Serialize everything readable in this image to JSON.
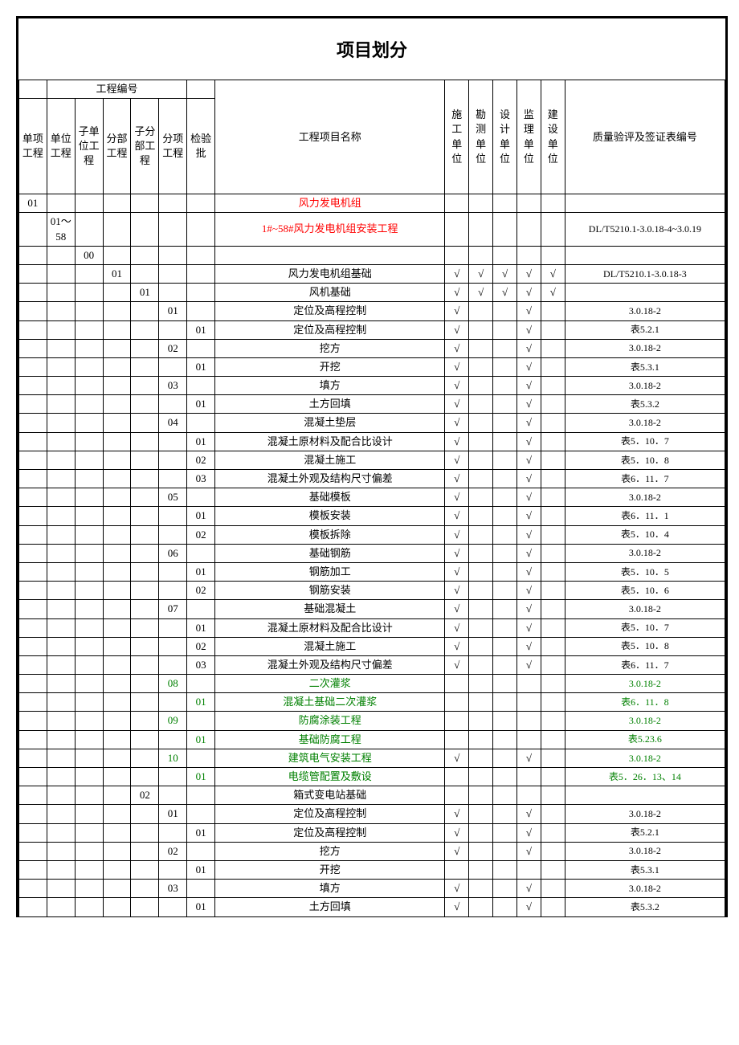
{
  "title": "项目划分",
  "proj_num_header": "工程编号",
  "headers": {
    "c1": "单项工程",
    "c2": "单位工程",
    "c3": "子单位工程",
    "c4": "分部工程",
    "c5": "子分部工程",
    "c6": "分项工程",
    "c7": "检验批",
    "name": "工程项目名称",
    "u1": "施工单位",
    "u2": "勘测单位",
    "u3": "设计单位",
    "u4": "监理单位",
    "u5": "建设单位",
    "qual": "质量验评及签证表编号"
  },
  "check": "√",
  "rows": [
    {
      "c1": "01",
      "name": "风力发电机组",
      "class": "red"
    },
    {
      "c2": "01～58",
      "name": "1#~58#风力发电机组安装工程",
      "class": "red",
      "qual": "DL/T5210.1-3.0.18-4~3.0.19"
    },
    {
      "c3": "00"
    },
    {
      "c4": "01",
      "name": "风力发电机组基础",
      "u1": "√",
      "u2": "√",
      "u3": "√",
      "u4": "√",
      "u5": "√",
      "qual": "DL/T5210.1-3.0.18-3"
    },
    {
      "c5": "01",
      "name": "风机基础",
      "u1": "√",
      "u2": "√",
      "u3": "√",
      "u4": "√",
      "u5": "√"
    },
    {
      "c6": "01",
      "name": "定位及高程控制",
      "u1": "√",
      "u4": "√",
      "qual": "3.0.18-2"
    },
    {
      "c7": "01",
      "name": "定位及高程控制",
      "u1": "√",
      "u4": "√",
      "qual": "表5.2.1"
    },
    {
      "c6": "02",
      "name": "挖方",
      "u1": "√",
      "u4": "√",
      "qual": "3.0.18-2"
    },
    {
      "c7": "01",
      "name": "开挖",
      "u1": "√",
      "u4": "√",
      "qual": "表5.3.1"
    },
    {
      "c6": "03",
      "name": "填方",
      "u1": "√",
      "u4": "√",
      "qual": "3.0.18-2"
    },
    {
      "c7": "01",
      "name": "土方回填",
      "u1": "√",
      "u4": "√",
      "qual": "表5.3.2"
    },
    {
      "c6": "04",
      "name": "混凝土垫层",
      "u1": "√",
      "u4": "√",
      "qual": "3.0.18-2"
    },
    {
      "c7": "01",
      "name": "混凝土原材料及配合比设计",
      "u1": "√",
      "u4": "√",
      "qual": "表5．10．7"
    },
    {
      "c7": "02",
      "name": "混凝土施工",
      "u1": "√",
      "u4": "√",
      "qual": "表5．10．8"
    },
    {
      "c7": "03",
      "name": "混凝土外观及结构尺寸偏差",
      "u1": "√",
      "u4": "√",
      "qual": "表6．11．7"
    },
    {
      "c6": "05",
      "name": "基础模板",
      "u1": "√",
      "u4": "√",
      "qual": "3.0.18-2"
    },
    {
      "c7": "01",
      "name": "模板安装",
      "u1": "√",
      "u4": "√",
      "qual": "表6．11．1"
    },
    {
      "c7": "02",
      "name": "模板拆除",
      "u1": "√",
      "u4": "√",
      "qual": "表5．10．4"
    },
    {
      "c6": "06",
      "name": "基础钢筋",
      "u1": "√",
      "u4": "√",
      "qual": "3.0.18-2"
    },
    {
      "c7": "01",
      "name": "钢筋加工",
      "u1": "√",
      "u4": "√",
      "qual": "表5．10．5"
    },
    {
      "c7": "02",
      "name": "钢筋安装",
      "u1": "√",
      "u4": "√",
      "qual": "表5．10．6"
    },
    {
      "c6": "07",
      "name": "基础混凝土",
      "u1": "√",
      "u4": "√",
      "qual": "3.0.18-2"
    },
    {
      "c7": "01",
      "name": "混凝土原材料及配合比设计",
      "u1": "√",
      "u4": "√",
      "qual": "表5．10．7"
    },
    {
      "c7": "02",
      "name": "混凝土施工",
      "u1": "√",
      "u4": "√",
      "qual": "表5．10．8"
    },
    {
      "c7": "03",
      "name": "混凝土外观及结构尺寸偏差",
      "u1": "√",
      "u4": "√",
      "qual": "表6．11．7"
    },
    {
      "c6": "08",
      "name": "二次灌浆",
      "class": "green",
      "qual": "3.0.18-2"
    },
    {
      "c7": "01",
      "name": "混凝土基础二次灌浆",
      "class": "green",
      "qual": "表6．11．8"
    },
    {
      "c6": "09",
      "name": "防腐涂装工程",
      "class": "green",
      "qual": "3.0.18-2"
    },
    {
      "c7": "01",
      "name": "基础防腐工程",
      "class": "green",
      "qual": "表5.23.6"
    },
    {
      "c6": "10",
      "name": "建筑电气安装工程",
      "class": "green",
      "u1": "√",
      "u4": "√",
      "qual": "3.0.18-2"
    },
    {
      "c7": "01",
      "name": "电缆管配置及敷设",
      "class": "green",
      "qual": "表5．26．13、14"
    },
    {
      "c5": "02",
      "name": "箱式变电站基础"
    },
    {
      "c6": "01",
      "name": "定位及高程控制",
      "u1": "√",
      "u4": "√",
      "qual": "3.0.18-2"
    },
    {
      "c7": "01",
      "name": "定位及高程控制",
      "u1": "√",
      "u4": "√",
      "qual": "表5.2.1"
    },
    {
      "c6": "02",
      "name": "挖方",
      "u1": "√",
      "u4": "√",
      "qual": "3.0.18-2"
    },
    {
      "c7": "01",
      "name": "开挖",
      "qual": "表5.3.1"
    },
    {
      "c6": "03",
      "name": "填方",
      "u1": "√",
      "u4": "√",
      "qual": "3.0.18-2"
    },
    {
      "c7": "01",
      "name": "土方回填",
      "u1": "√",
      "u4": "√",
      "qual": "表5.3.2"
    }
  ]
}
